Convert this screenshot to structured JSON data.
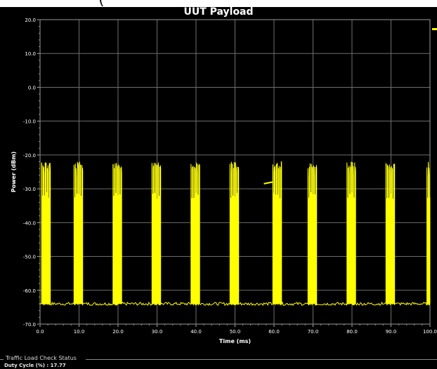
{
  "header": {
    "fragment": "("
  },
  "chart_data": {
    "type": "line",
    "title": "UUT Payload",
    "xlabel": "Time (ms)",
    "ylabel": "Power (dBm)",
    "xlim": [
      0,
      100
    ],
    "ylim": [
      -70,
      20
    ],
    "x_ticks": [
      0,
      10,
      20,
      30,
      40,
      50,
      60,
      70,
      80,
      90,
      100
    ],
    "x_tick_labels": [
      "0.0",
      "10.0",
      "20.0",
      "30.0",
      "40.0",
      "50.0",
      "60.0",
      "70.0",
      "80.0",
      "90.0",
      "100.0"
    ],
    "y_ticks": [
      20,
      10,
      0,
      -10,
      -20,
      -30,
      -40,
      -50,
      -60,
      -70
    ],
    "y_tick_labels": [
      "20.0",
      "10.0",
      "0.0",
      "-10.0",
      "-20.0",
      "-30.0",
      "-40.0",
      "-50.0",
      "-60.0",
      "-70.0"
    ],
    "grid": true,
    "background": "#000000",
    "series": [
      {
        "color": "#ffff00",
        "noise_floor_dbm": -64,
        "burst_peak_dbm": -22,
        "burst_low_dbm": -33,
        "burst_starts_ms": [
          0.4,
          8.7,
          18.7,
          28.7,
          38.7,
          48.7,
          59.7,
          68.7,
          78.7,
          88.7,
          99.2
        ],
        "burst_width_ms": 2.2,
        "step_segment": {
          "x": [
            57.4,
            59.6
          ],
          "y": [
            -28.5,
            -28.0
          ]
        }
      }
    ]
  },
  "status": {
    "group_title": "Traffic Load Check Status",
    "duty_cycle_label": "Duty Cycle (%) : 17.77"
  },
  "colors": {
    "trace": "#ffff00",
    "grid": "#6e6e6e",
    "axis_text": "#ffffff"
  }
}
